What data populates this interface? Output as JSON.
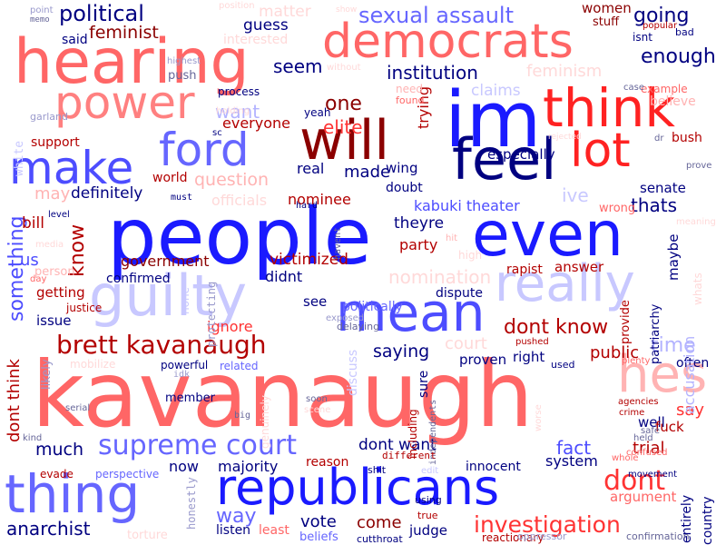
{
  "palette": {
    "red": "#ff0000",
    "salmon": "#ff6666",
    "pink": "#ffb3b3",
    "darkred": "#8b0000",
    "navy": "#000080",
    "blue": "#1a1aff",
    "periwinkle": "#6666ff",
    "lavender": "#b3b3ff"
  },
  "words": [
    {
      "text": "kavanaugh",
      "color": "#ff6666"
    },
    {
      "text": "people",
      "color": "#1a1aff"
    },
    {
      "text": "hearing",
      "color": "#ff6666"
    },
    {
      "text": "im",
      "color": "#1a1aff"
    },
    {
      "text": "even",
      "color": "#1a1aff"
    },
    {
      "text": "democrats",
      "color": "#ff6666"
    },
    {
      "text": "think",
      "color": "#ff2222"
    },
    {
      "text": "thing",
      "color": "#6666ff"
    },
    {
      "text": "republicans",
      "color": "#1a1aff"
    },
    {
      "text": "really",
      "color": "#c8c8ff"
    },
    {
      "text": "guilty",
      "color": "#c8c8ff"
    },
    {
      "text": "mean",
      "color": "#4d4dff"
    },
    {
      "text": "feel",
      "color": "#000080"
    },
    {
      "text": "will",
      "color": "#8b0000"
    },
    {
      "text": "power",
      "color": "#ff8080"
    },
    {
      "text": "make",
      "color": "#4d4dff"
    },
    {
      "text": "ford",
      "color": "#6666ff"
    },
    {
      "text": "lot",
      "color": "#ff2222"
    },
    {
      "text": "hes",
      "color": "#ffb3b3"
    },
    {
      "text": "supreme court",
      "color": "#6666ff"
    },
    {
      "text": "brett kavanaugh",
      "color": "#b30000"
    },
    {
      "text": "investigation",
      "color": "#ff3333"
    },
    {
      "text": "dont",
      "color": "#ff3333"
    },
    {
      "text": "sexual assault",
      "color": "#6666ff"
    },
    {
      "text": "political",
      "color": "#000080"
    },
    {
      "text": "feminist",
      "color": "#8b0000"
    },
    {
      "text": "going",
      "color": "#000080"
    },
    {
      "text": "enough",
      "color": "#000080"
    },
    {
      "text": "institution",
      "color": "#000080"
    },
    {
      "text": "one",
      "color": "#8b0000"
    },
    {
      "text": "elite",
      "color": "#ff3333"
    },
    {
      "text": "seem",
      "color": "#000080"
    },
    {
      "text": "guess",
      "color": "#000080"
    },
    {
      "text": "matter",
      "color": "#ffd9d9"
    },
    {
      "text": "women",
      "color": "#8b0000"
    },
    {
      "text": "stuff",
      "color": "#8b0000"
    },
    {
      "text": "isnt",
      "color": "#000080"
    },
    {
      "text": "said",
      "color": "#000080"
    },
    {
      "text": "point",
      "color": "#9999cc"
    },
    {
      "text": "memo",
      "color": "#666699"
    },
    {
      "text": "interested",
      "color": "#ffd9d9"
    },
    {
      "text": "feminism",
      "color": "#ffd9d9"
    },
    {
      "text": "believe",
      "color": "#ffb3b3"
    },
    {
      "text": "example",
      "color": "#ff6666"
    },
    {
      "text": "claims",
      "color": "#c8c8ff"
    },
    {
      "text": "want",
      "color": "#b3b3ff"
    },
    {
      "text": "everyone",
      "color": "#b30000"
    },
    {
      "text": "yeah",
      "color": "#000080"
    },
    {
      "text": "trying",
      "color": "#b30000"
    },
    {
      "text": "push",
      "color": "#666699"
    },
    {
      "text": "process",
      "color": "#000080"
    },
    {
      "text": "support",
      "color": "#b30000"
    },
    {
      "text": "white",
      "color": "#c8c8ff"
    },
    {
      "text": "especially",
      "color": "#000080"
    },
    {
      "text": "real",
      "color": "#000080"
    },
    {
      "text": "made",
      "color": "#000080"
    },
    {
      "text": "wing",
      "color": "#000080"
    },
    {
      "text": "question",
      "color": "#ffb3b3"
    },
    {
      "text": "may",
      "color": "#ffb3b3"
    },
    {
      "text": "definitely",
      "color": "#000080"
    },
    {
      "text": "nominee",
      "color": "#b30000"
    },
    {
      "text": "doubt",
      "color": "#000080"
    },
    {
      "text": "kabuki theater",
      "color": "#4d4dff"
    },
    {
      "text": "ive",
      "color": "#c8c8ff"
    },
    {
      "text": "senate",
      "color": "#000080"
    },
    {
      "text": "thats",
      "color": "#000080"
    },
    {
      "text": "something",
      "color": "#4d4dff"
    },
    {
      "text": "bill",
      "color": "#b30000"
    },
    {
      "text": "know",
      "color": "#b30000"
    },
    {
      "text": "theyre",
      "color": "#000080"
    },
    {
      "text": "party",
      "color": "#b30000"
    },
    {
      "text": "us",
      "color": "#4d4dff"
    },
    {
      "text": "government",
      "color": "#8b0000"
    },
    {
      "text": "victimized",
      "color": "#b30000"
    },
    {
      "text": "nomination",
      "color": "#ffd9d9"
    },
    {
      "text": "rapist",
      "color": "#b30000"
    },
    {
      "text": "answer",
      "color": "#b30000"
    },
    {
      "text": "maybe",
      "color": "#000080"
    },
    {
      "text": "getting",
      "color": "#b30000"
    },
    {
      "text": "confirmed",
      "color": "#000080"
    },
    {
      "text": "didnt",
      "color": "#000080"
    },
    {
      "text": "politically",
      "color": "#6666ff"
    },
    {
      "text": "dispute",
      "color": "#000080"
    },
    {
      "text": "issue",
      "color": "#000080"
    },
    {
      "text": "see",
      "color": "#000080"
    },
    {
      "text": "dont know",
      "color": "#b30000"
    },
    {
      "text": "ignore",
      "color": "#ff3333"
    },
    {
      "text": "saying",
      "color": "#000080"
    },
    {
      "text": "court",
      "color": "#ffd9d9"
    },
    {
      "text": "time",
      "color": "#b3b3ff"
    },
    {
      "text": "public",
      "color": "#b30000"
    },
    {
      "text": "right",
      "color": "#000080"
    },
    {
      "text": "often",
      "color": "#000080"
    },
    {
      "text": "say",
      "color": "#ff3333"
    },
    {
      "text": "dont think",
      "color": "#b30000"
    },
    {
      "text": "much",
      "color": "#000080"
    },
    {
      "text": "dont want",
      "color": "#000080"
    },
    {
      "text": "fact",
      "color": "#4d4dff"
    },
    {
      "text": "trial",
      "color": "#b30000"
    },
    {
      "text": "sure",
      "color": "#000080"
    },
    {
      "text": "well",
      "color": "#000080"
    },
    {
      "text": "fuck",
      "color": "#b30000"
    },
    {
      "text": "now",
      "color": "#000080"
    },
    {
      "text": "majority",
      "color": "#000080"
    },
    {
      "text": "reason",
      "color": "#b30000"
    },
    {
      "text": "system",
      "color": "#000080"
    },
    {
      "text": "innocent",
      "color": "#000080"
    },
    {
      "text": "argument",
      "color": "#ff6666"
    },
    {
      "text": "way",
      "color": "#6666ff"
    },
    {
      "text": "anarchist",
      "color": "#000080"
    },
    {
      "text": "listen",
      "color": "#000080"
    },
    {
      "text": "least",
      "color": "#ff6666"
    },
    {
      "text": "vote",
      "color": "#000080"
    },
    {
      "text": "come",
      "color": "#8b0000"
    },
    {
      "text": "judge",
      "color": "#000080"
    },
    {
      "text": "beliefs",
      "color": "#6666ff"
    },
    {
      "text": "country",
      "color": "#000080"
    },
    {
      "text": "entirely",
      "color": "#000080"
    },
    {
      "text": "confirmation",
      "color": "#666699"
    },
    {
      "text": "provide",
      "color": "#b30000"
    },
    {
      "text": "patriarchy",
      "color": "#000080"
    },
    {
      "text": "accusation",
      "color": "#b3b3ff"
    },
    {
      "text": "whats",
      "color": "#ffd9d9"
    },
    {
      "text": "prove",
      "color": "#666699"
    },
    {
      "text": "wrong",
      "color": "#ff6666"
    },
    {
      "text": "need",
      "color": "#ffb3b3"
    },
    {
      "text": "found",
      "color": "#ff6666"
    },
    {
      "text": "case",
      "color": "#666699"
    },
    {
      "text": "bad",
      "color": "#000080"
    },
    {
      "text": "popular",
      "color": "#b30000"
    },
    {
      "text": "show",
      "color": "#ffd9d9"
    },
    {
      "text": "position",
      "color": "#ffd9d9"
    },
    {
      "text": "without",
      "color": "#ffd9d9"
    },
    {
      "text": "holding",
      "color": "#ffd9d9"
    },
    {
      "text": "highest",
      "color": "#9999cc"
    },
    {
      "text": "sc",
      "color": "#000080"
    },
    {
      "text": "garland",
      "color": "#9999cc"
    },
    {
      "text": "world",
      "color": "#b30000"
    },
    {
      "text": "must",
      "color": "#000080"
    },
    {
      "text": "officials",
      "color": "#ffd9d9"
    },
    {
      "text": "hard",
      "color": "#000080"
    },
    {
      "text": "level",
      "color": "#000080"
    },
    {
      "text": "person",
      "color": "#ffb3b3"
    },
    {
      "text": "day",
      "color": "#ff6666"
    },
    {
      "text": "justice",
      "color": "#b30000"
    },
    {
      "text": "none",
      "color": "#c8c8ff"
    },
    {
      "text": "protecting",
      "color": "#9999cc"
    },
    {
      "text": "havent",
      "color": "#666699"
    },
    {
      "text": "hit",
      "color": "#ffb3b3"
    },
    {
      "text": "high",
      "color": "#ffd9d9"
    },
    {
      "text": "exposed",
      "color": "#9999cc"
    },
    {
      "text": "delaying",
      "color": "#666699"
    },
    {
      "text": "rejected",
      "color": "#ffd9d9"
    },
    {
      "text": "meaning",
      "color": "#ffd9d9"
    },
    {
      "text": "dr",
      "color": "#666699"
    },
    {
      "text": "bush",
      "color": "#b30000"
    },
    {
      "text": "pushed",
      "color": "#b30000"
    },
    {
      "text": "proven",
      "color": "#000080"
    },
    {
      "text": "used",
      "color": "#000080"
    },
    {
      "text": "plenty",
      "color": "#ff6666"
    },
    {
      "text": "related",
      "color": "#6666ff"
    },
    {
      "text": "powerful",
      "color": "#000080"
    },
    {
      "text": "idk",
      "color": "#9999cc"
    },
    {
      "text": "mobilize",
      "color": "#ffd9d9"
    },
    {
      "text": "likely",
      "color": "#9999cc"
    },
    {
      "text": "media",
      "color": "#ffd9d9"
    },
    {
      "text": "serial",
      "color": "#666699"
    },
    {
      "text": "member",
      "color": "#000080"
    },
    {
      "text": "genuinely",
      "color": "#ffd9d9"
    },
    {
      "text": "discuss",
      "color": "#c8c8ff"
    },
    {
      "text": "soon",
      "color": "#666699"
    },
    {
      "text": "scene",
      "color": "#ffd9d9"
    },
    {
      "text": "big",
      "color": "#666699"
    },
    {
      "text": "including",
      "color": "#b30000"
    },
    {
      "text": "independents",
      "color": "#666699"
    },
    {
      "text": "worse",
      "color": "#ffd9d9"
    },
    {
      "text": "crime",
      "color": "#b30000"
    },
    {
      "text": "agencies",
      "color": "#b30000"
    },
    {
      "text": "safe",
      "color": "#666699"
    },
    {
      "text": "held",
      "color": "#666699"
    },
    {
      "text": "kind",
      "color": "#666699"
    },
    {
      "text": "evade",
      "color": "#b30000"
    },
    {
      "text": "perspective",
      "color": "#6666ff"
    },
    {
      "text": "honestly",
      "color": "#9999cc"
    },
    {
      "text": "different",
      "color": "#b30000"
    },
    {
      "text": "shit",
      "color": "#000080"
    },
    {
      "text": "edit",
      "color": "#c8c8ff"
    },
    {
      "text": "whole",
      "color": "#ff6666"
    },
    {
      "text": "confused",
      "color": "#ff6666"
    },
    {
      "text": "movement",
      "color": "#000080"
    },
    {
      "text": "using",
      "color": "#000080"
    },
    {
      "text": "true",
      "color": "#b30000"
    },
    {
      "text": "torture",
      "color": "#ffd9d9"
    },
    {
      "text": "cutthroat",
      "color": "#000080"
    },
    {
      "text": "reactionary",
      "color": "#b30000"
    },
    {
      "text": "oppressor",
      "color": "#9999cc"
    }
  ]
}
